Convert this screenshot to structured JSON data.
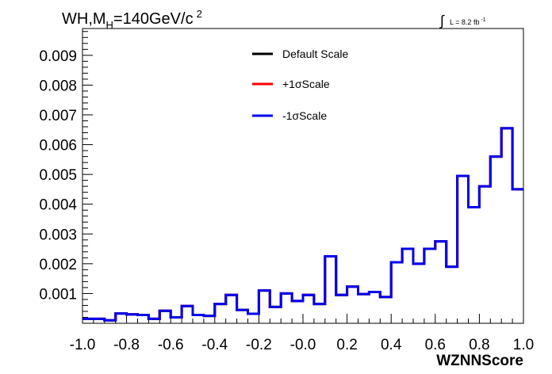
{
  "chart_data": {
    "type": "line",
    "title": {
      "main": "WH,M",
      "sub": "H",
      "rest": "=140GeV/c",
      "sup": "2"
    },
    "lumi": {
      "integral": "∫",
      "text": "L = 8.2 fb",
      "sup": "-1"
    },
    "xlabel": "WZNNScore",
    "ylabel": "",
    "xlim": [
      -1.0,
      1.0
    ],
    "ylim": [
      0.0,
      0.0099
    ],
    "x_ticks": [
      "-1.0",
      "-0.8",
      "-0.6",
      "-0.4",
      "-0.2",
      "-0.0",
      "0.2",
      "0.4",
      "0.6",
      "0.8",
      "1.0"
    ],
    "y_ticks": [
      "0.001",
      "0.002",
      "0.003",
      "0.004",
      "0.005",
      "0.006",
      "0.007",
      "0.008",
      "0.009"
    ],
    "bin_edges": [
      -1.0,
      -0.95,
      -0.9,
      -0.85,
      -0.8,
      -0.75,
      -0.7,
      -0.65,
      -0.6,
      -0.55,
      -0.5,
      -0.45,
      -0.4,
      -0.35,
      -0.3,
      -0.25,
      -0.2,
      -0.15,
      -0.1,
      -0.05,
      0.0,
      0.05,
      0.1,
      0.15,
      0.2,
      0.25,
      0.3,
      0.35,
      0.4,
      0.45,
      0.5,
      0.55,
      0.6,
      0.65,
      0.7,
      0.75,
      0.8,
      0.85,
      0.9,
      0.95,
      1.0
    ],
    "legend_position": "top-center",
    "series": [
      {
        "name": "Default Scale",
        "color": "#000000",
        "values": [
          0.00015,
          0.00015,
          0.0001,
          0.00033,
          0.0003,
          0.00028,
          0.00015,
          0.00042,
          0.0002,
          0.00058,
          0.00028,
          0.00025,
          0.00065,
          0.00095,
          0.00045,
          0.00032,
          0.0011,
          0.00055,
          0.001,
          0.00075,
          0.00095,
          0.00065,
          0.00225,
          0.00095,
          0.00123,
          0.00098,
          0.00105,
          0.00088,
          0.00205,
          0.0025,
          0.002,
          0.0025,
          0.00275,
          0.0019,
          0.00495,
          0.0039,
          0.0046,
          0.0056,
          0.00655,
          0.0045
        ]
      },
      {
        "name": "+1σScale",
        "color": "#ff0000",
        "values": [
          0.00015,
          0.00015,
          0.0001,
          0.00033,
          0.0003,
          0.00028,
          0.00015,
          0.00042,
          0.0002,
          0.00058,
          0.00028,
          0.00025,
          0.00065,
          0.00095,
          0.00045,
          0.00032,
          0.0011,
          0.00055,
          0.001,
          0.00075,
          0.00095,
          0.00065,
          0.00225,
          0.00095,
          0.00123,
          0.00098,
          0.00105,
          0.00088,
          0.00205,
          0.0025,
          0.002,
          0.0025,
          0.00275,
          0.0019,
          0.00495,
          0.0039,
          0.0046,
          0.0056,
          0.00655,
          0.0045
        ]
      },
      {
        "name": "-1σScale",
        "color": "#0000ee",
        "values": [
          0.00015,
          0.00015,
          0.0001,
          0.00033,
          0.0003,
          0.00028,
          0.00015,
          0.00042,
          0.0002,
          0.00058,
          0.00028,
          0.00025,
          0.00065,
          0.00095,
          0.00045,
          0.00032,
          0.0011,
          0.00055,
          0.001,
          0.00075,
          0.00095,
          0.00065,
          0.00225,
          0.00095,
          0.00123,
          0.00098,
          0.00105,
          0.00088,
          0.00205,
          0.0025,
          0.002,
          0.0025,
          0.00275,
          0.0019,
          0.00495,
          0.0039,
          0.0046,
          0.0056,
          0.00655,
          0.0045
        ]
      }
    ]
  }
}
